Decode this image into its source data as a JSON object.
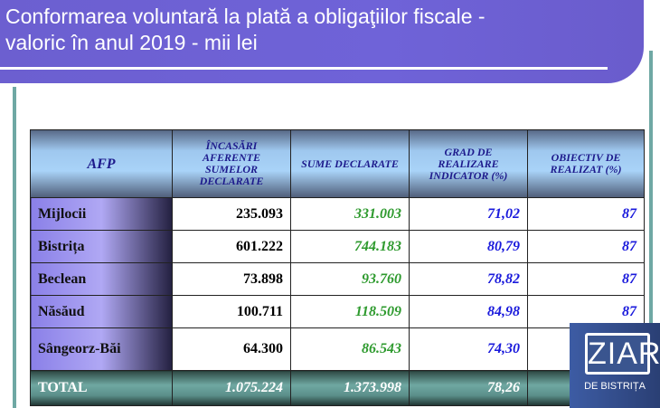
{
  "title": {
    "line1": "Conformarea voluntară la plată  a obligaţiilor fiscale -",
    "line2": "valoric în anul 2019 - mii lei"
  },
  "table": {
    "headers": [
      "AFP",
      "ÎNCASĂRI AFERENTE SUMELOR DECLARATE",
      "SUME DECLARATE",
      "GRAD DE REALIZARE INDICATOR  (%)",
      "OBIECTIV  DE REALIZAT  (%)"
    ],
    "rows": [
      [
        "Mijlocii",
        "235.093",
        "331.003",
        "71,02",
        "87"
      ],
      [
        "Bistrița",
        "601.222",
        "744.183",
        "80,79",
        "87"
      ],
      [
        "Beclean",
        "73.898",
        "93.760",
        "78,82",
        "87"
      ],
      [
        "Năsăud",
        "100.711",
        "118.509",
        "84,98",
        "87"
      ],
      [
        "Sângeorz-Băi",
        "64.300",
        "86.543",
        "74,30",
        ""
      ]
    ],
    "total": [
      "TOTAL",
      "1.075.224",
      "1.373.998",
      "78,26",
      ""
    ]
  },
  "logo": {
    "main": "ZIAR",
    "sub": "DE BISTRIȚA"
  },
  "colors": {
    "title_bar": "#6c5fd0",
    "frame": "#6fa8a4",
    "declared": "#2e9a2e",
    "percent": "#1a1adc"
  }
}
